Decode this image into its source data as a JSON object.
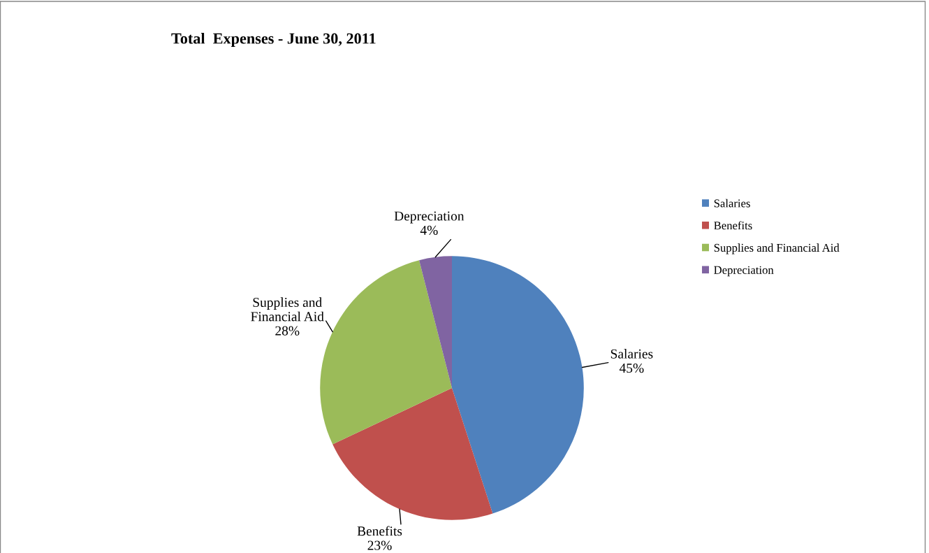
{
  "chart_data": {
    "type": "pie",
    "title": "Total  Expenses - June 30, 2011",
    "categories": [
      "Salaries",
      "Benefits",
      "Supplies and Financial Aid",
      "Depreciation"
    ],
    "values": [
      45,
      23,
      28,
      4
    ],
    "value_labels": [
      "45%",
      "23%",
      "28%",
      "4%"
    ],
    "colors": [
      "#4f81bd",
      "#c0504d",
      "#9bbb59",
      "#8064a2"
    ],
    "legend": "right"
  }
}
